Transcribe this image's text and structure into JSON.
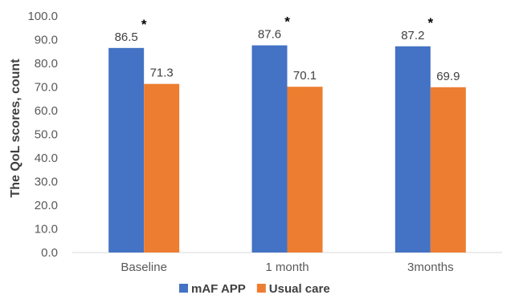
{
  "chart_data": {
    "type": "bar",
    "title": "",
    "xlabel": "",
    "ylabel": "The QoL scores, count",
    "categories": [
      "Baseline",
      "1 month",
      "3months"
    ],
    "series": [
      {
        "name": "mAF APP",
        "color": "#4472C4",
        "values": [
          86.5,
          87.6,
          87.2
        ]
      },
      {
        "name": "Usual care",
        "color": "#ED7D31",
        "values": [
          71.3,
          70.1,
          69.9
        ]
      }
    ],
    "ylim": [
      0,
      100
    ],
    "ytick_step": 10,
    "ytick_labels": [
      "0.0",
      "10.0",
      "20.0",
      "30.0",
      "40.0",
      "50.0",
      "60.0",
      "70.0",
      "80.0",
      "90.0",
      "100.0"
    ],
    "data_labels": [
      [
        "86.5",
        "87.6",
        "87.2"
      ],
      [
        "71.3",
        "70.1",
        "69.9"
      ]
    ],
    "significance_marker": "*",
    "grid": false,
    "legend_position": "bottom-center"
  }
}
